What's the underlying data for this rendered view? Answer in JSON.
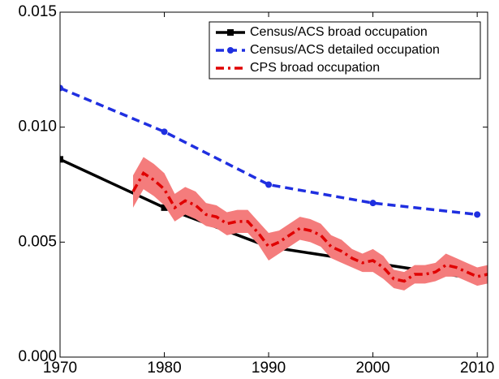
{
  "chart_data": {
    "type": "line",
    "xlim": [
      1970,
      2011
    ],
    "xticks": [
      1970,
      1980,
      1990,
      2000,
      2010
    ],
    "ylim": [
      0,
      0.015
    ],
    "yticks": [
      {
        "value": 0,
        "label": "0.000"
      },
      {
        "value": 0.005,
        "label": "0.005"
      },
      {
        "value": 0.01,
        "label": "0.010"
      },
      {
        "value": 0.015,
        "label": "0.015"
      }
    ],
    "grid": false,
    "legend": "upper right",
    "series": [
      {
        "name": "Census/ACS broad occupation",
        "color": "#000000",
        "style": "solid",
        "marker": "square",
        "x": [
          1970,
          1980,
          1990,
          2000,
          2010
        ],
        "values": [
          0.0086,
          0.0065,
          0.0048,
          0.0041,
          0.0034
        ]
      },
      {
        "name": "Census/ACS detailed occupation",
        "color": "#1f2fe0",
        "style": "dashed",
        "marker": "circle",
        "x": [
          1970,
          1980,
          1990,
          2000,
          2010
        ],
        "values": [
          0.0117,
          0.0098,
          0.0075,
          0.0067,
          0.0062
        ]
      },
      {
        "name": "CPS broad occupation",
        "color": "#e00000",
        "style": "dashdot",
        "marker": "none",
        "band_color": "#f47c7c",
        "x": [
          1977,
          1978,
          1979,
          1980,
          1981,
          1982,
          1983,
          1984,
          1985,
          1986,
          1987,
          1988,
          1989,
          1990,
          1991,
          1992,
          1993,
          1994,
          1995,
          1996,
          1997,
          1998,
          1999,
          2000,
          2001,
          2002,
          2003,
          2004,
          2005,
          2006,
          2007,
          2008,
          2009,
          2010,
          2011
        ],
        "values": [
          0.0072,
          0.008,
          0.0077,
          0.0073,
          0.0065,
          0.0068,
          0.0066,
          0.0062,
          0.0061,
          0.0058,
          0.0059,
          0.0059,
          0.0054,
          0.0048,
          0.005,
          0.0053,
          0.0056,
          0.0055,
          0.0053,
          0.0048,
          0.0046,
          0.0043,
          0.0041,
          0.0042,
          0.0039,
          0.0034,
          0.0033,
          0.0036,
          0.0036,
          0.0037,
          0.004,
          0.0039,
          0.0037,
          0.0035,
          0.0036
        ],
        "lower": [
          0.0065,
          0.0073,
          0.007,
          0.0066,
          0.0059,
          0.0062,
          0.006,
          0.0057,
          0.0056,
          0.0053,
          0.0054,
          0.0054,
          0.0049,
          0.0042,
          0.0045,
          0.0048,
          0.0051,
          0.005,
          0.0048,
          0.0043,
          0.0041,
          0.0039,
          0.0037,
          0.0037,
          0.0034,
          0.003,
          0.0029,
          0.0032,
          0.0032,
          0.0033,
          0.0035,
          0.0035,
          0.0033,
          0.0031,
          0.0032
        ],
        "upper": [
          0.0079,
          0.0087,
          0.0084,
          0.008,
          0.0071,
          0.0074,
          0.0072,
          0.0067,
          0.0066,
          0.0063,
          0.0064,
          0.0064,
          0.0059,
          0.0054,
          0.0055,
          0.0058,
          0.0061,
          0.006,
          0.0058,
          0.0053,
          0.0051,
          0.0047,
          0.0045,
          0.0047,
          0.0044,
          0.0038,
          0.0037,
          0.004,
          0.004,
          0.0041,
          0.0045,
          0.0043,
          0.0041,
          0.0039,
          0.004
        ]
      }
    ]
  }
}
